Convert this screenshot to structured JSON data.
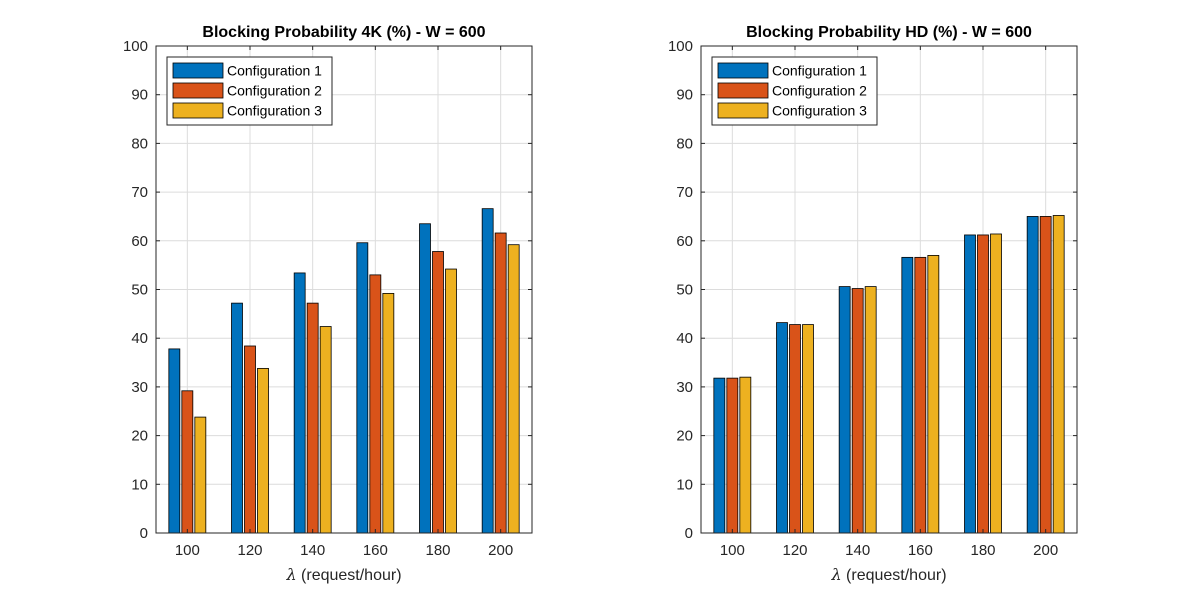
{
  "chart_data": [
    {
      "type": "bar",
      "title": "Blocking Probability 4K (%) - W = 600",
      "xlabel_symbol": "λ",
      "xlabel": " (request/hour)",
      "ylabel": "",
      "ylim": [
        0,
        100
      ],
      "yticks": [
        "0",
        "10",
        "20",
        "30",
        "40",
        "50",
        "60",
        "70",
        "80",
        "90",
        "100"
      ],
      "categories": [
        "100",
        "120",
        "140",
        "160",
        "180",
        "200"
      ],
      "grid": true,
      "legend_position": "top-left",
      "series": [
        {
          "name": "Configuration 1",
          "color": "#0072bd",
          "values": [
            37.8,
            47.2,
            53.4,
            59.6,
            63.5,
            66.6
          ]
        },
        {
          "name": "Configuration 2",
          "color": "#d95319",
          "values": [
            29.2,
            38.4,
            47.2,
            53.0,
            57.8,
            61.6
          ]
        },
        {
          "name": "Configuration 3",
          "color": "#edb120",
          "values": [
            23.8,
            33.8,
            42.4,
            49.2,
            54.2,
            59.2
          ]
        }
      ]
    },
    {
      "type": "bar",
      "title": "Blocking Probability HD (%) - W = 600",
      "xlabel_symbol": "λ",
      "xlabel": " (request/hour)",
      "ylabel": "",
      "ylim": [
        0,
        100
      ],
      "yticks": [
        "0",
        "10",
        "20",
        "30",
        "40",
        "50",
        "60",
        "70",
        "80",
        "90",
        "100"
      ],
      "categories": [
        "100",
        "120",
        "140",
        "160",
        "180",
        "200"
      ],
      "grid": true,
      "legend_position": "top-left",
      "series": [
        {
          "name": "Configuration 1",
          "color": "#0072bd",
          "values": [
            31.8,
            43.2,
            50.6,
            56.6,
            61.2,
            65.0
          ]
        },
        {
          "name": "Configuration 2",
          "color": "#d95319",
          "values": [
            31.8,
            42.8,
            50.2,
            56.6,
            61.2,
            65.0
          ]
        },
        {
          "name": "Configuration 3",
          "color": "#edb120",
          "values": [
            32.0,
            42.8,
            50.6,
            57.0,
            61.4,
            65.2
          ]
        }
      ]
    }
  ]
}
